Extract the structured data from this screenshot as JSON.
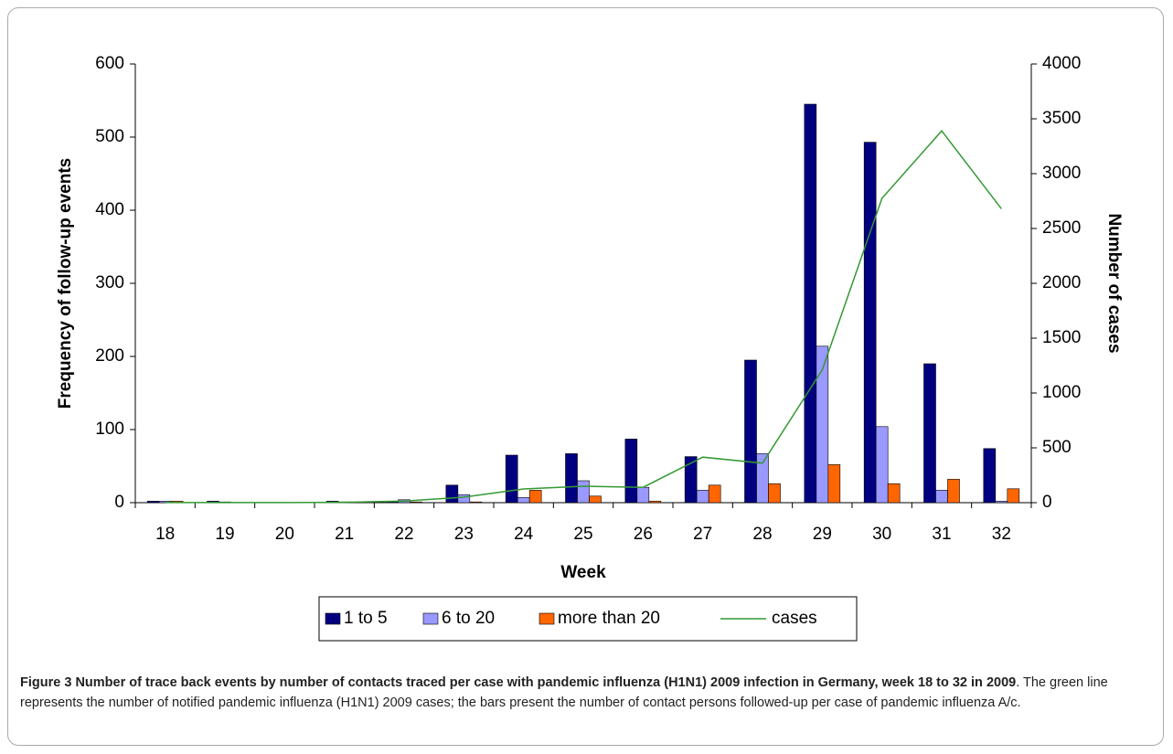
{
  "chart_data": {
    "type": "bar",
    "categories": [
      "18",
      "19",
      "20",
      "21",
      "22",
      "23",
      "24",
      "25",
      "26",
      "27",
      "28",
      "29",
      "30",
      "31",
      "32"
    ],
    "series": [
      {
        "name": "1 to 5",
        "color": "#000080",
        "values": [
          2,
          2,
          0,
          2,
          1,
          24,
          65,
          67,
          87,
          63,
          195,
          545,
          493,
          190,
          74
        ]
      },
      {
        "name": "6 to 20",
        "color": "#9999ff",
        "values": [
          2,
          1,
          0,
          1,
          4,
          11,
          7,
          30,
          21,
          17,
          67,
          214,
          104,
          17,
          2
        ]
      },
      {
        "name": "more than 20",
        "color": "#ff6600",
        "values": [
          2,
          0,
          0,
          0,
          1,
          1,
          17,
          9,
          2,
          24,
          26,
          52,
          26,
          32,
          19
        ]
      },
      {
        "name": "cases",
        "type": "line",
        "axis": "y2",
        "color": "#339933",
        "values": [
          1,
          1,
          1,
          3,
          15,
          50,
          125,
          150,
          140,
          415,
          360,
          1210,
          2775,
          3390,
          2680
        ]
      }
    ],
    "xlabel": "Week",
    "ylabel": "Frequency of follow-up events",
    "y2label": "Number of cases",
    "ylim": [
      0,
      600
    ],
    "yticks": [
      0,
      100,
      200,
      300,
      400,
      500,
      600
    ],
    "y2lim": [
      0,
      4000
    ],
    "y2ticks": [
      0,
      500,
      1000,
      1500,
      2000,
      2500,
      3000,
      3500,
      4000
    ]
  },
  "caption": {
    "label": "Figure 3",
    "title": "Number of trace back events by number of contacts traced per case with pandemic influenza (H1N1) 2009 infection in Germany, week 18 to 32 in 2009",
    "text": ". The green line represents the number of notified pandemic influenza (H1N1) 2009 cases; the bars present the number of contact persons followed-up per case of pandemic influenza A/c."
  }
}
